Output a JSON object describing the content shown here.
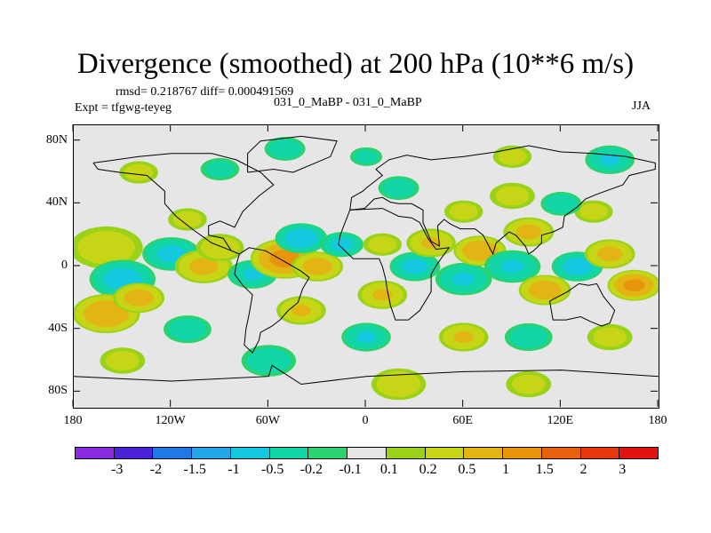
{
  "chart_data": {
    "type": "heatmap",
    "title": "Divergence (smoothed) at 200 hPa (10**6 m/s)",
    "stats_text": "rmsd= 0.218767 diff= 0.000491569",
    "case_text": "031_0_MaBP - 031_0_MaBP",
    "expt_text": "Expt = tfgwg-teyeg",
    "season": "JJA",
    "x_axis": {
      "range": [
        -180,
        180
      ],
      "ticks": [
        -180,
        -120,
        -60,
        0,
        60,
        120,
        180
      ],
      "tick_labels": [
        "180",
        "120W",
        "60W",
        "0",
        "60E",
        "120E",
        "180"
      ]
    },
    "y_axis": {
      "range": [
        -90,
        90
      ],
      "ticks": [
        80,
        40,
        0,
        -40,
        -80
      ],
      "tick_labels": [
        "80N",
        "40N",
        "0",
        "40S",
        "80S"
      ]
    },
    "colorbar": {
      "labels": [
        "-3",
        "-2",
        "-1.5",
        "-1",
        "-0.5",
        "-0.2",
        "-0.1",
        "0.1",
        "0.2",
        "0.5",
        "1",
        "1.5",
        "2",
        "3"
      ],
      "colors": [
        "#8a2be2",
        "#4b22d8",
        "#1e78e6",
        "#22a8ea",
        "#14c8e0",
        "#12d6a8",
        "#2ad370",
        "#e6e6e6",
        "#9ad21a",
        "#c6d616",
        "#e2b414",
        "#e8940c",
        "#e8600c",
        "#e6380c",
        "#e01212"
      ]
    },
    "features": [
      {
        "lon": -160,
        "lat": 12,
        "r": 22,
        "v": 0.35
      },
      {
        "lon": -150,
        "lat": -8,
        "r": 18,
        "v": -0.7
      },
      {
        "lon": -160,
        "lat": -30,
        "r": 18,
        "v": 0.9
      },
      {
        "lon": -140,
        "lat": -20,
        "r": 14,
        "v": 0.7
      },
      {
        "lon": -120,
        "lat": 8,
        "r": 16,
        "v": -0.6
      },
      {
        "lon": -110,
        "lat": 30,
        "r": 12,
        "v": 0.3
      },
      {
        "lon": -100,
        "lat": 0,
        "r": 16,
        "v": 0.6
      },
      {
        "lon": -110,
        "lat": -40,
        "r": 14,
        "v": -0.4
      },
      {
        "lon": -90,
        "lat": 12,
        "r": 14,
        "v": 0.4
      },
      {
        "lon": -70,
        "lat": -5,
        "r": 14,
        "v": -0.5
      },
      {
        "lon": -50,
        "lat": 5,
        "r": 18,
        "v": 1.2
      },
      {
        "lon": -30,
        "lat": 0,
        "r": 14,
        "v": 0.7
      },
      {
        "lon": -40,
        "lat": 18,
        "r": 14,
        "v": -0.8
      },
      {
        "lon": -15,
        "lat": 14,
        "r": 12,
        "v": -0.6
      },
      {
        "lon": -40,
        "lat": -28,
        "r": 14,
        "v": 0.5
      },
      {
        "lon": -60,
        "lat": -60,
        "r": 16,
        "v": -0.4
      },
      {
        "lon": -90,
        "lat": 62,
        "r": 12,
        "v": -0.3
      },
      {
        "lon": -140,
        "lat": 60,
        "r": 12,
        "v": 0.3
      },
      {
        "lon": -50,
        "lat": 75,
        "r": 12,
        "v": -0.4
      },
      {
        "lon": 10,
        "lat": -18,
        "r": 14,
        "v": 0.5
      },
      {
        "lon": 10,
        "lat": 14,
        "r": 12,
        "v": 0.3
      },
      {
        "lon": 30,
        "lat": 0,
        "r": 14,
        "v": -0.6
      },
      {
        "lon": 40,
        "lat": 15,
        "r": 14,
        "v": 0.5
      },
      {
        "lon": 60,
        "lat": -8,
        "r": 16,
        "v": -0.5
      },
      {
        "lon": 70,
        "lat": 10,
        "r": 14,
        "v": 0.9
      },
      {
        "lon": 90,
        "lat": 0,
        "r": 16,
        "v": -0.5
      },
      {
        "lon": 110,
        "lat": -15,
        "r": 14,
        "v": 0.8
      },
      {
        "lon": 100,
        "lat": 22,
        "r": 14,
        "v": 0.6
      },
      {
        "lon": 130,
        "lat": 0,
        "r": 14,
        "v": -0.7
      },
      {
        "lon": 150,
        "lat": 8,
        "r": 14,
        "v": 0.6
      },
      {
        "lon": 165,
        "lat": -12,
        "r": 14,
        "v": 1.1
      },
      {
        "lon": 140,
        "lat": 35,
        "r": 12,
        "v": 0.3
      },
      {
        "lon": 120,
        "lat": 40,
        "r": 12,
        "v": -0.4
      },
      {
        "lon": 90,
        "lat": 45,
        "r": 14,
        "v": 0.3
      },
      {
        "lon": 60,
        "lat": 35,
        "r": 12,
        "v": 0.3
      },
      {
        "lon": 90,
        "lat": 70,
        "r": 12,
        "v": 0.3
      },
      {
        "lon": 20,
        "lat": 50,
        "r": 12,
        "v": -0.4
      },
      {
        "lon": 150,
        "lat": 68,
        "r": 14,
        "v": -0.5
      },
      {
        "lon": 0,
        "lat": 70,
        "r": 10,
        "v": -0.3
      },
      {
        "lon": 60,
        "lat": -45,
        "r": 14,
        "v": 0.5
      },
      {
        "lon": 100,
        "lat": -45,
        "r": 14,
        "v": -0.4
      },
      {
        "lon": 150,
        "lat": -45,
        "r": 14,
        "v": 0.3
      },
      {
        "lon": 0,
        "lat": -45,
        "r": 14,
        "v": -0.5
      },
      {
        "lon": -150,
        "lat": -60,
        "r": 14,
        "v": 0.3
      },
      {
        "lon": 20,
        "lat": -75,
        "r": 16,
        "v": 0.4
      },
      {
        "lon": 100,
        "lat": -75,
        "r": 14,
        "v": 0.3
      }
    ],
    "coastlines": [
      [
        [
          -168,
          66
        ],
        [
          -140,
          70
        ],
        [
          -120,
          72
        ],
        [
          -95,
          72
        ],
        [
          -80,
          68
        ],
        [
          -65,
          60
        ],
        [
          -57,
          52
        ],
        [
          -66,
          45
        ],
        [
          -76,
          35
        ],
        [
          -81,
          25
        ],
        [
          -90,
          29
        ],
        [
          -97,
          26
        ],
        [
          -97,
          20
        ],
        [
          -88,
          18
        ],
        [
          -83,
          10
        ],
        [
          -78,
          8
        ],
        [
          -95,
          15
        ],
        [
          -106,
          23
        ],
        [
          -117,
          32
        ],
        [
          -124,
          40
        ],
        [
          -124,
          48
        ],
        [
          -135,
          58
        ],
        [
          -152,
          60
        ],
        [
          -165,
          62
        ],
        [
          -168,
          66
        ]
      ],
      [
        [
          -78,
          8
        ],
        [
          -72,
          12
        ],
        [
          -62,
          10
        ],
        [
          -50,
          3
        ],
        [
          -40,
          -3
        ],
        [
          -35,
          -7
        ],
        [
          -39,
          -14
        ],
        [
          -42,
          -23
        ],
        [
          -48,
          -28
        ],
        [
          -53,
          -34
        ],
        [
          -58,
          -38
        ],
        [
          -65,
          -42
        ],
        [
          -66,
          -47
        ],
        [
          -70,
          -55
        ],
        [
          -75,
          -50
        ],
        [
          -74,
          -40
        ],
        [
          -72,
          -30
        ],
        [
          -70,
          -18
        ],
        [
          -76,
          -12
        ],
        [
          -81,
          -5
        ],
        [
          -80,
          1
        ],
        [
          -78,
          8
        ]
      ],
      [
        [
          -10,
          36
        ],
        [
          -16,
          20
        ],
        [
          -17,
          14
        ],
        [
          -8,
          5
        ],
        [
          0,
          5
        ],
        [
          8,
          5
        ],
        [
          10,
          0
        ],
        [
          12,
          -8
        ],
        [
          13,
          -15
        ],
        [
          15,
          -25
        ],
        [
          18,
          -34
        ],
        [
          26,
          -34
        ],
        [
          33,
          -28
        ],
        [
          40,
          -16
        ],
        [
          40,
          -5
        ],
        [
          44,
          2
        ],
        [
          51,
          12
        ],
        [
          43,
          11
        ],
        [
          38,
          18
        ],
        [
          33,
          28
        ],
        [
          28,
          31
        ],
        [
          20,
          32
        ],
        [
          10,
          37
        ],
        [
          -10,
          36
        ]
      ],
      [
        [
          -10,
          36
        ],
        [
          -9,
          44
        ],
        [
          -2,
          48
        ],
        [
          0,
          50
        ],
        [
          5,
          54
        ],
        [
          10,
          58
        ],
        [
          6,
          62
        ],
        [
          14,
          68
        ],
        [
          25,
          71
        ],
        [
          40,
          68
        ],
        [
          60,
          70
        ],
        [
          80,
          73
        ],
        [
          100,
          77
        ],
        [
          120,
          73
        ],
        [
          140,
          72
        ],
        [
          160,
          70
        ],
        [
          178,
          66
        ],
        [
          178,
          62
        ],
        [
          162,
          58
        ],
        [
          158,
          52
        ],
        [
          142,
          46
        ],
        [
          135,
          43
        ],
        [
          130,
          38
        ],
        [
          122,
          32
        ],
        [
          121,
          25
        ],
        [
          115,
          22
        ],
        [
          108,
          20
        ],
        [
          108,
          15
        ],
        [
          103,
          10
        ],
        [
          100,
          8
        ],
        [
          98,
          13
        ],
        [
          92,
          20
        ],
        [
          88,
          22
        ],
        [
          80,
          15
        ],
        [
          78,
          8
        ],
        [
          72,
          20
        ],
        [
          67,
          24
        ],
        [
          58,
          24
        ],
        [
          52,
          27
        ],
        [
          48,
          30
        ],
        [
          44,
          26
        ],
        [
          45,
          13
        ],
        [
          40,
          16
        ],
        [
          35,
          28
        ],
        [
          35,
          36
        ],
        [
          28,
          40
        ],
        [
          20,
          40
        ],
        [
          15,
          41
        ],
        [
          10,
          44
        ],
        [
          5,
          43
        ],
        [
          -1,
          37
        ],
        [
          -10,
          36
        ]
      ],
      [
        [
          113,
          -22
        ],
        [
          115,
          -34
        ],
        [
          123,
          -34
        ],
        [
          132,
          -32
        ],
        [
          138,
          -35
        ],
        [
          145,
          -38
        ],
        [
          150,
          -36
        ],
        [
          153,
          -28
        ],
        [
          146,
          -19
        ],
        [
          142,
          -11
        ],
        [
          137,
          -12
        ],
        [
          131,
          -11
        ],
        [
          124,
          -16
        ],
        [
          113,
          -22
        ]
      ],
      [
        [
          -73,
          60
        ],
        [
          -57,
          62
        ],
        [
          -45,
          60
        ],
        [
          -22,
          70
        ],
        [
          -18,
          80
        ],
        [
          -40,
          83
        ],
        [
          -65,
          80
        ],
        [
          -73,
          72
        ],
        [
          -73,
          60
        ]
      ],
      [
        [
          -180,
          -70
        ],
        [
          -120,
          -73
        ],
        [
          -60,
          -70
        ],
        [
          -58,
          -63
        ],
        [
          -40,
          -75
        ],
        [
          0,
          -70
        ],
        [
          60,
          -67
        ],
        [
          120,
          -66
        ],
        [
          180,
          -70
        ]
      ]
    ]
  }
}
